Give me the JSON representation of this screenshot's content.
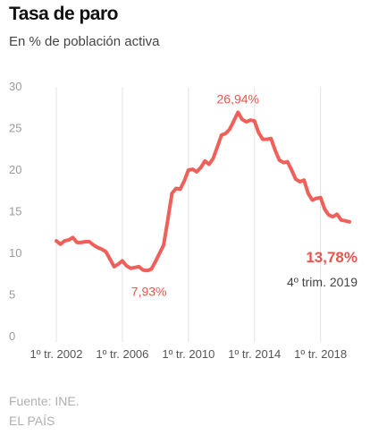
{
  "header": {
    "title": "Tasa de paro",
    "subtitle": "En % de población activa"
  },
  "footer": {
    "source": "Fuente: INE.",
    "brand": "EL PAÍS"
  },
  "colors": {
    "line": "#f0605a",
    "annotation": "#e8554e",
    "grid": "#e3e3e3",
    "axis_text": "#9a9a9a"
  },
  "chart_data": {
    "type": "line",
    "title": "Tasa de paro",
    "subtitle": "En % de población activa",
    "xlabel": "",
    "ylabel": "",
    "ylim": [
      0,
      30
    ],
    "y_ticks": [
      "0",
      "5",
      "10",
      "15",
      "20",
      "25",
      "30"
    ],
    "x_ticks": [
      {
        "label": "1º tr. 2002",
        "x": 2002.0
      },
      {
        "label": "1º tr. 2006",
        "x": 2006.0
      },
      {
        "label": "1º tr. 2010",
        "x": 2010.0
      },
      {
        "label": "1º tr. 2014",
        "x": 2014.0
      },
      {
        "label": "1º tr. 2018",
        "x": 2018.0
      }
    ],
    "grid": "vertical",
    "series": [
      {
        "x": [
          2002.0,
          2002.25,
          2002.5,
          2002.75,
          2003.0,
          2003.25,
          2003.5,
          2003.75,
          2004.0,
          2004.25,
          2004.5,
          2004.75,
          2005.0,
          2005.25,
          2005.5,
          2005.75,
          2006.0,
          2006.25,
          2006.5,
          2006.75,
          2007.0,
          2007.25,
          2007.5,
          2007.75,
          2008.0,
          2008.25,
          2008.5,
          2008.75,
          2009.0,
          2009.25,
          2009.5,
          2009.75,
          2010.0,
          2010.25,
          2010.5,
          2010.75,
          2011.0,
          2011.25,
          2011.5,
          2011.75,
          2012.0,
          2012.25,
          2012.5,
          2012.75,
          2013.0,
          2013.25,
          2013.5,
          2013.75,
          2014.0,
          2014.25,
          2014.5,
          2014.75,
          2015.0,
          2015.25,
          2015.5,
          2015.75,
          2016.0,
          2016.25,
          2016.5,
          2016.75,
          2017.0,
          2017.25,
          2017.5,
          2017.75,
          2018.0,
          2018.25,
          2018.5,
          2018.75,
          2019.0,
          2019.25,
          2019.5,
          2019.75
        ],
        "values": [
          11.5,
          11.1,
          11.5,
          11.6,
          11.9,
          11.3,
          11.3,
          11.4,
          11.4,
          11.0,
          10.7,
          10.5,
          10.2,
          9.3,
          8.4,
          8.7,
          9.1,
          8.5,
          8.2,
          8.3,
          8.4,
          8.0,
          7.93,
          8.1,
          9.0,
          10.0,
          11.0,
          14.0,
          17.2,
          17.8,
          17.7,
          18.7,
          20.0,
          20.1,
          19.8,
          20.3,
          21.1,
          20.7,
          21.4,
          22.8,
          24.2,
          24.4,
          24.9,
          25.9,
          26.94,
          26.1,
          25.8,
          26.0,
          25.9,
          24.5,
          23.7,
          23.7,
          23.8,
          22.4,
          21.2,
          20.9,
          21.0,
          20.0,
          18.9,
          18.6,
          18.8,
          17.2,
          16.4,
          16.6,
          16.7,
          15.3,
          14.6,
          14.4,
          14.7,
          14.0,
          13.9,
          13.78
        ]
      }
    ],
    "annotations": {
      "max": {
        "text": "26,94%",
        "x": 2013.0,
        "value": 26.94
      },
      "min": {
        "text": "7,93%",
        "x": 2007.5,
        "value": 7.93
      },
      "last": {
        "text": "13,78%",
        "period": "4º trim. 2019",
        "x": 2019.75,
        "value": 13.78
      }
    }
  }
}
